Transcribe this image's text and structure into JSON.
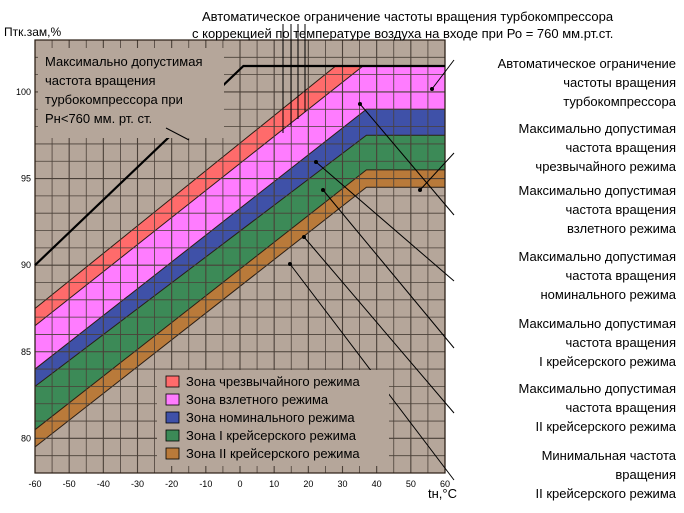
{
  "chart_data": {
    "type": "area",
    "ylabel": "Птк.зам,%",
    "xlabel": "tн,°C",
    "xlim": [
      -60,
      60
    ],
    "ylim": [
      78,
      103
    ],
    "x_ticks": [
      "-60",
      "-50",
      "-40",
      "-30",
      "-20",
      "-10",
      "0",
      "10",
      "20",
      "30",
      "40",
      "50",
      "60"
    ],
    "y_ticks": [
      "80",
      "85",
      "90",
      "95",
      "100"
    ],
    "y_tick_values": [
      80,
      85,
      90,
      95,
      100
    ],
    "grid": true,
    "legend_position": "bottom-center",
    "background_color": "#b5a69a",
    "zones": [
      {
        "name": "Зона чрезвычайного режима",
        "color": "#ff6b6b",
        "upper": [
          [
            -60,
            87.5
          ],
          [
            28,
            101.5
          ],
          [
            60,
            101.5
          ]
        ],
        "lower": [
          [
            -60,
            86.5
          ],
          [
            36,
            101.5
          ],
          [
            60,
            101.5
          ]
        ]
      },
      {
        "name": "Зона взлетного режима",
        "color": "#ff7cff",
        "upper": [
          [
            -60,
            86.5
          ],
          [
            36,
            101.5
          ],
          [
            60,
            101.5
          ]
        ],
        "lower": [
          [
            -60,
            84.0
          ],
          [
            37,
            99.0
          ],
          [
            60,
            99.0
          ]
        ]
      },
      {
        "name": "Зона номинального режима",
        "color": "#3f51a8",
        "upper": [
          [
            -60,
            84.0
          ],
          [
            37,
            99.0
          ],
          [
            60,
            99.0
          ]
        ],
        "lower": [
          [
            -60,
            83.0
          ],
          [
            37,
            97.5
          ],
          [
            60,
            97.5
          ]
        ]
      },
      {
        "name": "Зона I крейсерского режима",
        "color": "#3c8a57",
        "upper": [
          [
            -60,
            83.0
          ],
          [
            37,
            97.5
          ],
          [
            60,
            97.5
          ]
        ],
        "lower": [
          [
            -60,
            80.5
          ],
          [
            37,
            95.5
          ],
          [
            60,
            95.5
          ]
        ]
      },
      {
        "name": "Зона II крейсерского режима",
        "color": "#b97a3a",
        "upper": [
          [
            -60,
            80.5
          ],
          [
            37,
            95.5
          ],
          [
            60,
            95.5
          ]
        ],
        "lower": [
          [
            -60,
            79.5
          ],
          [
            37,
            94.5
          ],
          [
            60,
            94.5
          ]
        ]
      }
    ],
    "max_rpm_line": {
      "color": "#000000",
      "points": [
        [
          -60,
          90.0
        ],
        [
          1,
          101.5
        ],
        [
          60,
          101.5
        ]
      ]
    },
    "annotations": {
      "top": [
        "Автоматическое ограничение частоты вращения турбокомпрессора",
        "с коррекцией по температуре воздуха на входе при Ро = 760 мм.рт.ст."
      ],
      "box": [
        "Максимально допустимая",
        "частота вращения",
        "турбокомпрессора при",
        "Рн<760 мм. рт. ст."
      ],
      "right": [
        {
          "lines": [
            "Автоматическое ограничение",
            "частоты вращения",
            "турбокомпрессора"
          ]
        },
        {
          "lines": [
            "Максимально допустимая",
            "частота вращения",
            "чрезвычайного режима"
          ]
        },
        {
          "lines": [
            "Максимально допустимая",
            "частота вращения",
            "взлетного режима"
          ]
        },
        {
          "lines": [
            "Максимально допустимая",
            "частота вращения",
            "номинального режима"
          ]
        },
        {
          "lines": [
            "Максимально допустимая",
            "частота вращения",
            "I крейсерского режима"
          ]
        },
        {
          "lines": [
            "Максимально допустимая",
            "частота вращения",
            "II крейсерского режима"
          ]
        },
        {
          "lines": [
            "Минимальная частота",
            "вращения",
            "II крейсерского режима"
          ]
        }
      ]
    }
  }
}
